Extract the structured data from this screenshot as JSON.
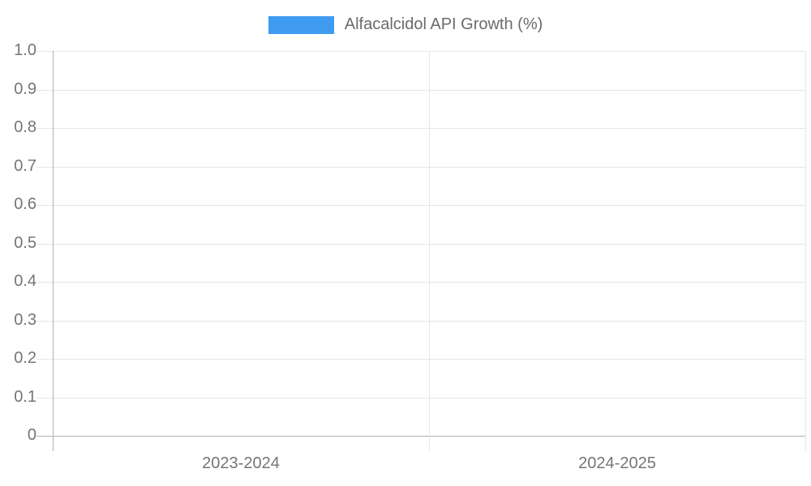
{
  "legend": {
    "label": "Alfacalcidol API Growth (%)",
    "swatch_color": "#3e9bf0"
  },
  "chart_data": {
    "type": "bar",
    "title": "Alfacalcidol API Growth (%)",
    "categories": [
      "2023-2024",
      "2024-2025"
    ],
    "series": [
      {
        "name": "Alfacalcidol API Growth (%)",
        "values": [
          0,
          0
        ],
        "color": "#3e9bf0"
      }
    ],
    "xlabel": "",
    "ylabel": "",
    "ylim": [
      0,
      1.0
    ],
    "yticks": [
      "1.0",
      "0.9",
      "0.8",
      "0.7",
      "0.6",
      "0.5",
      "0.4",
      "0.3",
      "0.2",
      "0.1",
      "0"
    ],
    "grid": "horizontal-and-category-separators",
    "legend_position": "top-center"
  },
  "colors": {
    "background": "#ffffff",
    "gridline": "#e6e6e6",
    "axis_line": "#b0b0b0",
    "tick_label": "#757575",
    "legend_text": "#6b6b6b"
  }
}
